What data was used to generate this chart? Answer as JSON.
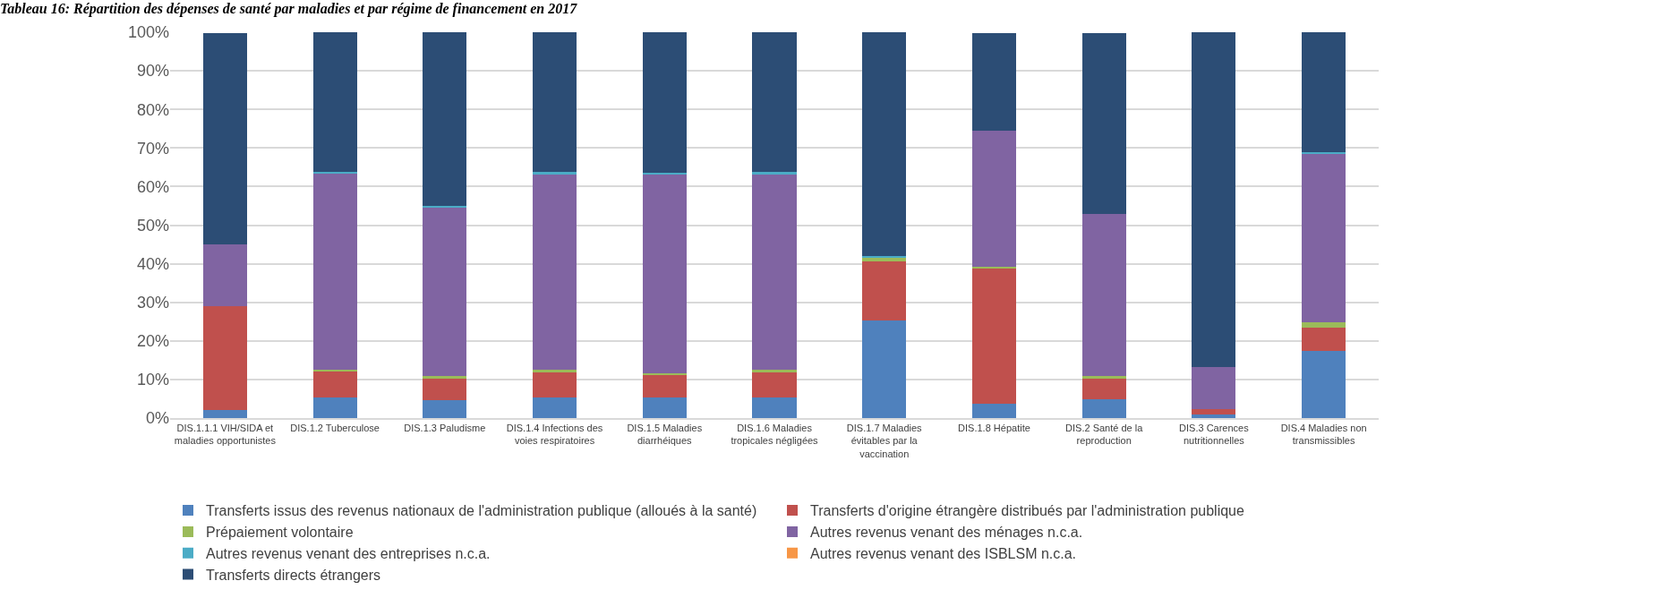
{
  "chart_data": {
    "type": "bar",
    "stacked": true,
    "title": "Tableau 16: Répartition des dépenses de santé par maladies et par régime de financement en 2017",
    "categories": [
      "DIS.1.1.1 VIH/SIDA et maladies opportunistes",
      "DIS.1.2 Tuberculose",
      "DIS.1.3 Paludisme",
      "DIS.1.4 Infections des voies respiratoires",
      "DIS.1.5 Maladies diarrhéiques",
      "DIS.1.6 Maladies tropicales négligées",
      "DIS.1.7 Maladies évitables par la vaccination",
      "DIS.1.8 Hépatite",
      "DIS.2 Santé de la reproduction",
      "DIS.3 Carences nutritionnelles",
      "DIS.4 Maladies non transmissibles"
    ],
    "series": [
      {
        "name": "Transferts issus des revenus nationaux de l'administration publique (alloués à la santé)",
        "color": "#4f81bd",
        "values": [
          2.2,
          5.3,
          4.7,
          5.3,
          5.3,
          5.3,
          25.4,
          3.7,
          4.8,
          1.0,
          17.5
        ]
      },
      {
        "name": "Transferts d'origine étrangère distribués par l'administration publique",
        "color": "#c0504d",
        "values": [
          26.9,
          6.7,
          5.5,
          6.5,
          5.8,
          6.5,
          15.3,
          35.2,
          5.4,
          1.3,
          5.9
        ]
      },
      {
        "name": "Prépaiement volontaire",
        "color": "#9bbb59",
        "values": [
          null,
          0.6,
          0.6,
          0.7,
          0.5,
          0.7,
          1.0,
          0.2,
          0.6,
          0,
          1.4
        ]
      },
      {
        "name": "Autres revenus venant des ménages n.c.a.",
        "color": "#8064a2",
        "values": [
          15.9,
          50.9,
          43.9,
          50.8,
          51.7,
          50.8,
          0,
          35.4,
          42.1,
          10.9,
          43.8
        ]
      },
      {
        "name": "Autres revenus venant des entreprises n.c.a.",
        "color": "#4bacc6",
        "values": [
          null,
          0.4,
          0.4,
          0.4,
          0.2,
          0.4,
          0.2,
          null,
          null,
          0,
          0.2
        ]
      },
      {
        "name": "Autres revenus venant des ISBLSM n.c.a.",
        "color": "#f79646",
        "values": [
          0,
          0,
          0,
          0,
          0,
          0,
          0,
          0,
          0,
          0,
          0
        ]
      },
      {
        "name": "Transferts directs étrangers",
        "color": "#2c4d75",
        "values": [
          54.7,
          36.1,
          44.9,
          36.3,
          36.5,
          36.3,
          58.1,
          25.2,
          46.8,
          86.8,
          31.2
        ]
      }
    ],
    "ylim": [
      0,
      100
    ],
    "yticks": [
      {
        "value": 0,
        "label": "0%"
      },
      {
        "value": 10,
        "label": "10%"
      },
      {
        "value": 20,
        "label": "20%"
      },
      {
        "value": 30,
        "label": "30%"
      },
      {
        "value": 40,
        "label": "40%"
      },
      {
        "value": 50,
        "label": "50%"
      },
      {
        "value": 60,
        "label": "60%"
      },
      {
        "value": 70,
        "label": "70%"
      },
      {
        "value": 80,
        "label": "80%"
      },
      {
        "value": 90,
        "label": "90%"
      },
      {
        "value": 100,
        "label": "100%"
      }
    ],
    "grid": "y",
    "legend": "bottom"
  }
}
